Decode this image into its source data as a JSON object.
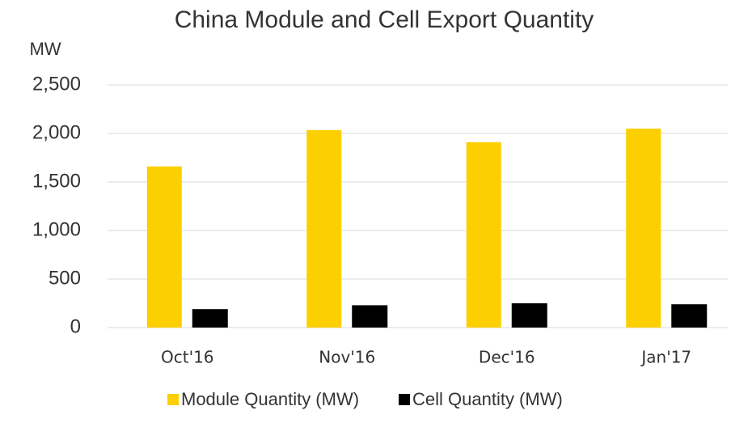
{
  "chart_data": {
    "type": "bar",
    "title": "China Module and Cell Export Quantity",
    "y_label": "MW",
    "categories": [
      "Oct'16",
      "Nov'16",
      "Dec'16",
      "Jan'17"
    ],
    "series": [
      {
        "name": "Module Quantity (MW)",
        "color": "#fccf00",
        "values": [
          1660,
          2035,
          1910,
          2050
        ]
      },
      {
        "name": "Cell Quantity (MW)",
        "color": "#000000",
        "values": [
          190,
          230,
          250,
          240
        ]
      }
    ],
    "ylim": [
      0,
      2500
    ],
    "yticks": [
      0,
      500,
      {
        "value": 1000,
        "label": "1,000"
      },
      {
        "value": 1500,
        "label": "1,500"
      },
      {
        "value": 2000,
        "label": "2,000"
      },
      {
        "value": 2500,
        "label": "2,500"
      }
    ],
    "grid": true,
    "legend": "bottom"
  }
}
